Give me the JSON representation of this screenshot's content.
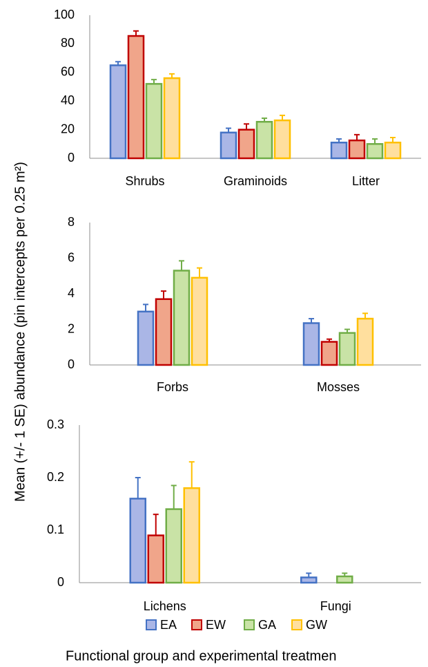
{
  "ylabel": "Mean (+/- 1 SE) abundance (pin intercepts per 0.25 m²)",
  "xlabel": "Functional group and experimental treatmen",
  "chart_data": [
    {
      "type": "bar",
      "categories": [
        "Shrubs",
        "Graminoids",
        "Litter"
      ],
      "ylim": [
        0,
        100
      ],
      "yticks": [
        0,
        20,
        40,
        60,
        80,
        100
      ],
      "series": [
        {
          "name": "EA",
          "color": "#aab6e6",
          "edgecolor": "#4472c4",
          "values": [
            65,
            18,
            11
          ],
          "errors": [
            2.5,
            3,
            2.5
          ]
        },
        {
          "name": "EW",
          "color": "#f0a58a",
          "edgecolor": "#c00000",
          "values": [
            85.5,
            20,
            12.5
          ],
          "errors": [
            3.5,
            4,
            4
          ]
        },
        {
          "name": "GA",
          "color": "#c9e3a6",
          "edgecolor": "#70ad47",
          "values": [
            52,
            25.5,
            10
          ],
          "errors": [
            3,
            2.5,
            3.5
          ]
        },
        {
          "name": "GW",
          "color": "#ffdf9e",
          "edgecolor": "#ffc000",
          "values": [
            56,
            26.5,
            11
          ],
          "errors": [
            3,
            3.5,
            3.5
          ]
        }
      ]
    },
    {
      "type": "bar",
      "categories": [
        "Forbs",
        "Mosses"
      ],
      "ylim": [
        0,
        8
      ],
      "yticks": [
        0,
        2,
        4,
        6,
        8
      ],
      "series": [
        {
          "name": "EA",
          "color": "#aab6e6",
          "edgecolor": "#4472c4",
          "values": [
            3.0,
            2.35
          ],
          "errors": [
            0.4,
            0.25
          ]
        },
        {
          "name": "EW",
          "color": "#f0a58a",
          "edgecolor": "#c00000",
          "values": [
            3.7,
            1.3
          ],
          "errors": [
            0.45,
            0.15
          ]
        },
        {
          "name": "GA",
          "color": "#c9e3a6",
          "edgecolor": "#70ad47",
          "values": [
            5.3,
            1.8
          ],
          "errors": [
            0.55,
            0.2
          ]
        },
        {
          "name": "GW",
          "color": "#ffdf9e",
          "edgecolor": "#ffc000",
          "values": [
            4.9,
            2.6
          ],
          "errors": [
            0.55,
            0.3
          ]
        }
      ]
    },
    {
      "type": "bar",
      "categories": [
        "Lichens",
        "Fungi"
      ],
      "ylim": [
        0,
        0.3
      ],
      "yticks": [
        0,
        0.1,
        0.2,
        0.3
      ],
      "series": [
        {
          "name": "EA",
          "color": "#aab6e6",
          "edgecolor": "#4472c4",
          "values": [
            0.16,
            0.01
          ],
          "errors": [
            0.04,
            0.008
          ]
        },
        {
          "name": "EW",
          "color": "#f0a58a",
          "edgecolor": "#c00000",
          "values": [
            0.09,
            null
          ],
          "errors": [
            0.04,
            null
          ]
        },
        {
          "name": "GA",
          "color": "#c9e3a6",
          "edgecolor": "#70ad47",
          "values": [
            0.14,
            0.012
          ],
          "errors": [
            0.045,
            0.006
          ]
        },
        {
          "name": "GW",
          "color": "#ffdf9e",
          "edgecolor": "#ffc000",
          "values": [
            0.18,
            null
          ],
          "errors": [
            0.05,
            null
          ]
        }
      ]
    }
  ]
}
